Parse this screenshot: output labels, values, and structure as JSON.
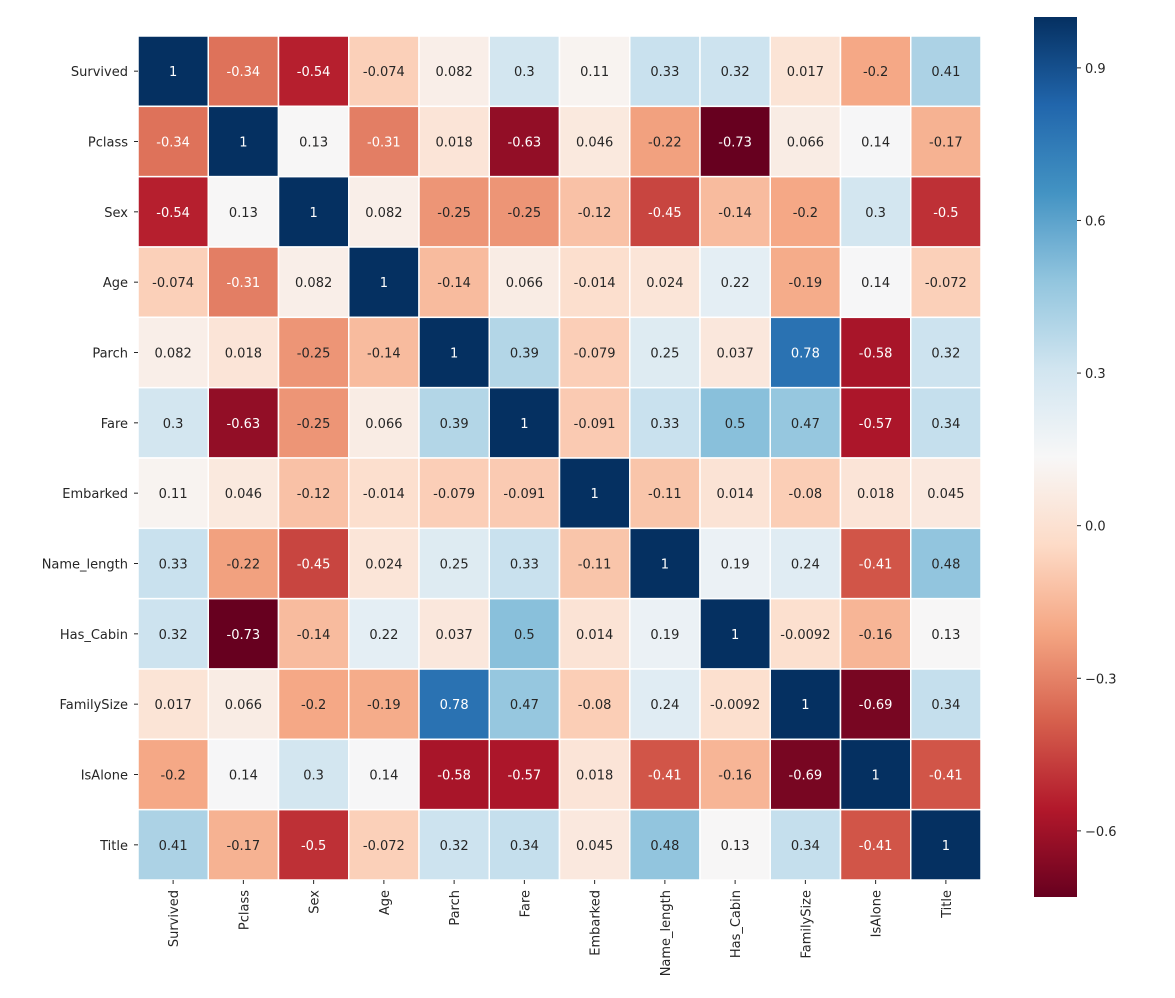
{
  "chart_data": {
    "type": "heatmap",
    "title": "",
    "xlabel": "",
    "ylabel": "",
    "colormap": "RdBu",
    "vmin": -0.73,
    "vmax": 1.0,
    "annotate": true,
    "grid_line_color": "#ffffff",
    "labels": [
      "Survived",
      "Pclass",
      "Sex",
      "Age",
      "Parch",
      "Fare",
      "Embarked",
      "Name_length",
      "Has_Cabin",
      "FamilySize",
      "IsAlone",
      "Title"
    ],
    "matrix": [
      [
        "1",
        "-0.34",
        "-0.54",
        "-0.074",
        "0.082",
        "0.3",
        "0.11",
        "0.33",
        "0.32",
        "0.017",
        "-0.2",
        "0.41"
      ],
      [
        "-0.34",
        "1",
        "0.13",
        "-0.31",
        "0.018",
        "-0.63",
        "0.046",
        "-0.22",
        "-0.73",
        "0.066",
        "0.14",
        "-0.17"
      ],
      [
        "-0.54",
        "0.13",
        "1",
        "0.082",
        "-0.25",
        "-0.25",
        "-0.12",
        "-0.45",
        "-0.14",
        "-0.2",
        "0.3",
        "-0.5"
      ],
      [
        "-0.074",
        "-0.31",
        "0.082",
        "1",
        "-0.14",
        "0.066",
        "-0.014",
        "0.024",
        "0.22",
        "-0.19",
        "0.14",
        "-0.072"
      ],
      [
        "0.082",
        "0.018",
        "-0.25",
        "-0.14",
        "1",
        "0.39",
        "-0.079",
        "0.25",
        "0.037",
        "0.78",
        "-0.58",
        "0.32"
      ],
      [
        "0.3",
        "-0.63",
        "-0.25",
        "0.066",
        "0.39",
        "1",
        "-0.091",
        "0.33",
        "0.5",
        "0.47",
        "-0.57",
        "0.34"
      ],
      [
        "0.11",
        "0.046",
        "-0.12",
        "-0.014",
        "-0.079",
        "-0.091",
        "1",
        "-0.11",
        "0.014",
        "-0.08",
        "0.018",
        "0.045"
      ],
      [
        "0.33",
        "-0.22",
        "-0.45",
        "0.024",
        "0.25",
        "0.33",
        "-0.11",
        "1",
        "0.19",
        "0.24",
        "-0.41",
        "0.48"
      ],
      [
        "0.32",
        "-0.73",
        "-0.14",
        "0.22",
        "0.037",
        "0.5",
        "0.014",
        "0.19",
        "1",
        "-0.0092",
        "-0.16",
        "0.13"
      ],
      [
        "0.017",
        "0.066",
        "-0.2",
        "-0.19",
        "0.78",
        "0.47",
        "-0.08",
        "0.24",
        "-0.0092",
        "1",
        "-0.69",
        "0.34"
      ],
      [
        "-0.2",
        "0.14",
        "0.3",
        "0.14",
        "-0.58",
        "-0.57",
        "0.018",
        "-0.41",
        "-0.16",
        "-0.69",
        "1",
        "-0.41"
      ],
      [
        "0.41",
        "-0.17",
        "-0.5",
        "-0.072",
        "0.32",
        "0.34",
        "0.045",
        "0.48",
        "0.13",
        "0.34",
        "-0.41",
        "1"
      ]
    ],
    "colorbar": {
      "ticks": [
        0.9,
        0.6,
        0.3,
        0.0,
        -0.3,
        -0.6
      ],
      "tick_labels": [
        "0.9",
        "0.6",
        "0.3",
        "0.0",
        "−0.3",
        "−0.6"
      ],
      "placement": "right"
    }
  }
}
